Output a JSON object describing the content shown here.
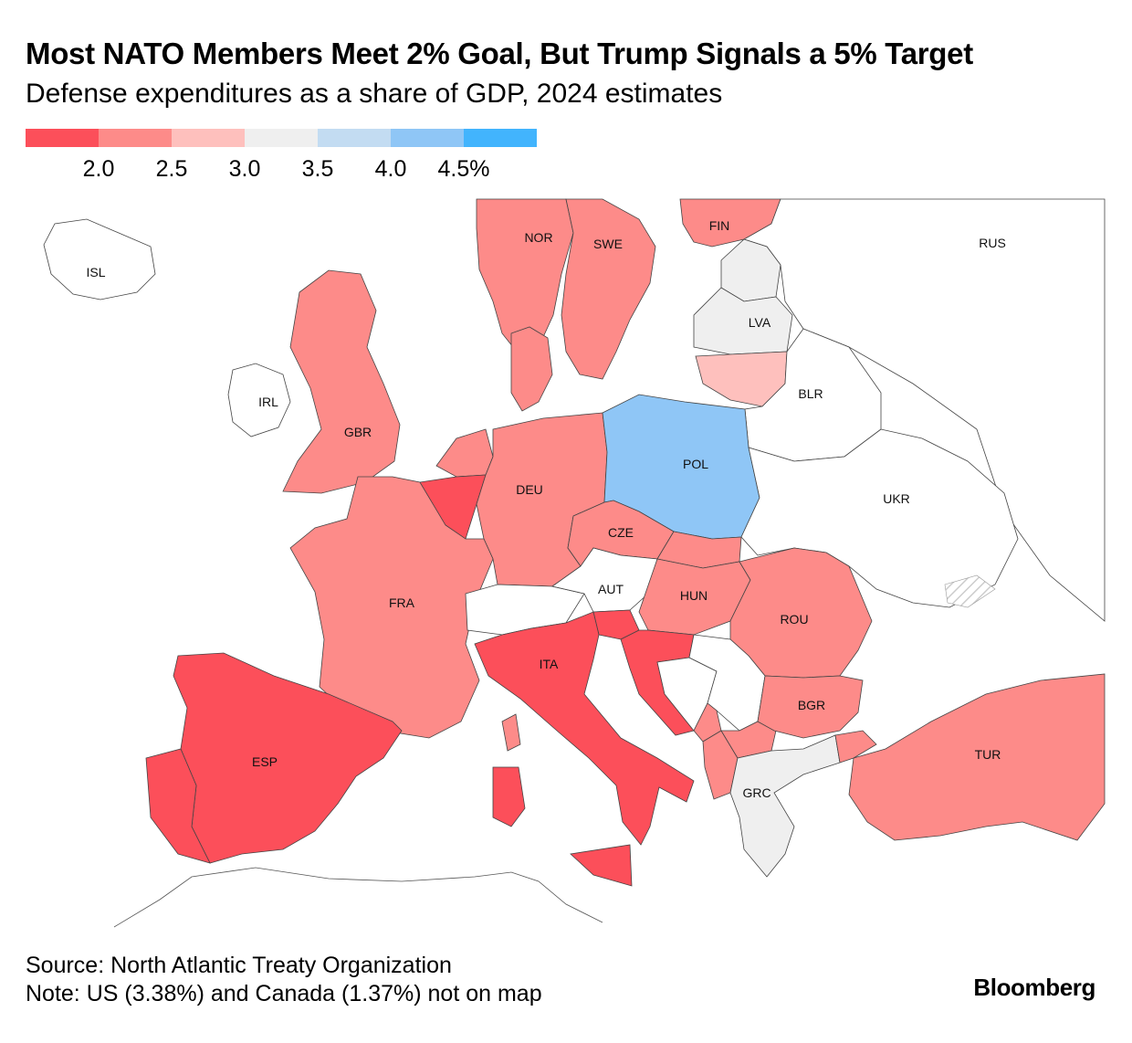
{
  "title": "Most NATO Members Meet 2% Goal, But Trump Signals a 5% Target",
  "subtitle": "Defense expenditures as a share of GDP, 2024 estimates",
  "legend": {
    "colors": [
      "#fc4f5a",
      "#fd8b89",
      "#fec0bd",
      "#efefef",
      "#c3dcf2",
      "#8fc6f6",
      "#42b4fd"
    ],
    "ticks": [
      "2.0",
      "2.5",
      "3.0",
      "3.5",
      "4.0",
      "4.5%"
    ]
  },
  "countries": [
    {
      "code": "ISL",
      "label": "ISL",
      "color": "#ffffff"
    },
    {
      "code": "NOR",
      "label": "NOR",
      "color": "#fd8b89"
    },
    {
      "code": "SWE",
      "label": "SWE",
      "color": "#fd8b89"
    },
    {
      "code": "FIN",
      "label": "FIN",
      "color": "#fd8b89"
    },
    {
      "code": "RUS",
      "label": "RUS",
      "color": "#ffffff"
    },
    {
      "code": "EST",
      "label": "",
      "color": "#efefef"
    },
    {
      "code": "LVA",
      "label": "LVA",
      "color": "#efefef"
    },
    {
      "code": "LTU",
      "label": "",
      "color": "#fec0bd"
    },
    {
      "code": "BLR",
      "label": "BLR",
      "color": "#ffffff"
    },
    {
      "code": "IRL",
      "label": "IRL",
      "color": "#ffffff"
    },
    {
      "code": "GBR",
      "label": "GBR",
      "color": "#fd8b89"
    },
    {
      "code": "DNK",
      "label": "",
      "color": "#fd8b89"
    },
    {
      "code": "NLD",
      "label": "",
      "color": "#fd8b89"
    },
    {
      "code": "BEL",
      "label": "",
      "color": "#fc4f5a"
    },
    {
      "code": "DEU",
      "label": "DEU",
      "color": "#fd8b89"
    },
    {
      "code": "POL",
      "label": "POL",
      "color": "#8fc6f6"
    },
    {
      "code": "UKR",
      "label": "UKR",
      "color": "#ffffff"
    },
    {
      "code": "CZE",
      "label": "CZE",
      "color": "#fd8b89"
    },
    {
      "code": "SVK",
      "label": "",
      "color": "#fd8b89"
    },
    {
      "code": "FRA",
      "label": "FRA",
      "color": "#fd8b89"
    },
    {
      "code": "CHE",
      "label": "",
      "color": "#ffffff"
    },
    {
      "code": "AUT",
      "label": "AUT",
      "color": "#ffffff"
    },
    {
      "code": "HUN",
      "label": "HUN",
      "color": "#fd8b89"
    },
    {
      "code": "ROU",
      "label": "ROU",
      "color": "#fd8b89"
    },
    {
      "code": "SVN",
      "label": "",
      "color": "#fc4f5a"
    },
    {
      "code": "HRV",
      "label": "",
      "color": "#fc4f5a"
    },
    {
      "code": "BIH",
      "label": "",
      "color": "#ffffff"
    },
    {
      "code": "SRB",
      "label": "",
      "color": "#ffffff"
    },
    {
      "code": "MNE",
      "label": "",
      "color": "#fd8b89"
    },
    {
      "code": "ALB",
      "label": "",
      "color": "#fd8b89"
    },
    {
      "code": "MKD",
      "label": "",
      "color": "#fd8b89"
    },
    {
      "code": "ITA",
      "label": "ITA",
      "color": "#fc4f5a"
    },
    {
      "code": "BGR",
      "label": "BGR",
      "color": "#fd8b89"
    },
    {
      "code": "ESP",
      "label": "ESP",
      "color": "#fc4f5a"
    },
    {
      "code": "PRT",
      "label": "",
      "color": "#fc4f5a"
    },
    {
      "code": "GRC",
      "label": "GRC",
      "color": "#efefef"
    },
    {
      "code": "TUR",
      "label": "TUR",
      "color": "#fd8b89"
    }
  ],
  "source": "Source: North Atlantic Treaty Organization",
  "note": "Note: US (3.38%) and Canada (1.37%) not on map",
  "brand": "Bloomberg"
}
